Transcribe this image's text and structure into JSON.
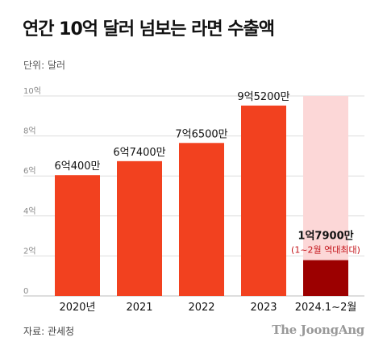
{
  "title": "연간 10억 달러 넘보는 라면 수출액",
  "unit_label": "단위: 달러",
  "source": "자료: 관세청",
  "brand": "The JoongAng",
  "chart_data": {
    "type": "bar",
    "title": "연간 10억 달러 넘보는 라면 수출액",
    "ylabel": "",
    "ylim": [
      0,
      10
    ],
    "y_unit": "억 달러",
    "yticks": [
      0,
      2,
      4,
      6,
      8,
      10
    ],
    "ytick_labels": [
      "0",
      "2억",
      "4억",
      "6억",
      "8억",
      "10억"
    ],
    "grid": true,
    "categories": [
      "2020년",
      "2021",
      "2022",
      "2023",
      "2024.1~2월"
    ],
    "values": [
      6.04,
      6.74,
      7.65,
      9.52,
      1.79
    ],
    "data_labels": [
      "6억400만",
      "6억7400만",
      "7억6500만",
      "9억5200만",
      "1억7900만"
    ],
    "sub_label": "(1~2월 역대최대)",
    "background_bar": {
      "category_index": 4,
      "value": 10,
      "color": "#fcd7d7"
    },
    "colors": {
      "bar": "#f2411f",
      "highlight_bar": "#9c0000",
      "highlight_label": "#c4161c",
      "grid": "#dddddd"
    }
  }
}
